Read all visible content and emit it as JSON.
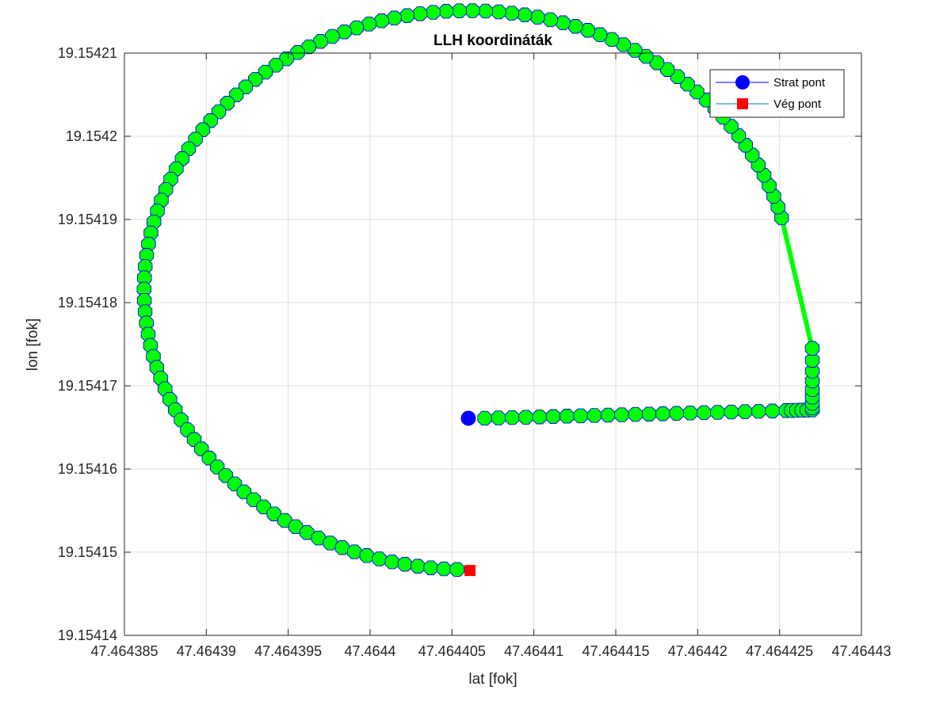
{
  "chart_data": {
    "type": "scatter",
    "title": "LLH koordináták",
    "xlabel": "lat [fok]",
    "ylabel": "lon [fok]",
    "xlim": [
      47.464385,
      47.46443
    ],
    "ylim": [
      19.15414,
      19.15421
    ],
    "xticks": [
      "47.464385",
      "47.46439",
      "47.464395",
      "47.4644",
      "47.464405",
      "47.46441",
      "47.464415",
      "47.46442",
      "47.464425",
      "47.46443"
    ],
    "yticks": [
      "19.15414",
      "19.15415",
      "19.15416",
      "19.15417",
      "19.15418",
      "19.15419",
      "19.1542",
      "19.15421"
    ],
    "grid": true,
    "legend_position": "top-right",
    "legend": [
      {
        "name": "Strat pont",
        "marker": "circle",
        "color": "#0000ff"
      },
      {
        "name": "Vég pont",
        "marker": "square",
        "color": "#ff0000"
      }
    ],
    "colors": {
      "path_marker_fill": "#00ff00",
      "path_marker_edge": "#0000ff",
      "path_line": "#00ff00",
      "start": "#0000ff",
      "end": "#ff0000",
      "grid": "#dfdfdf",
      "axes": "#262626"
    },
    "path_segments": [
      {
        "lat": [
          47.464406,
          47.464427
        ],
        "lon": [
          19.1541661,
          19.1541671
        ]
      },
      {
        "lat": [
          47.464427,
          47.464427
        ],
        "lon": [
          19.1541671,
          19.1541774
        ]
      }
    ],
    "arc": {
      "center_lat": 47.464406,
      "center_lon": 19.1541815,
      "radius_lat": 1.98e-05,
      "radius_lon": 3.36e-05,
      "theta_start_deg": 15,
      "theta_end_deg": 268,
      "count": 110
    },
    "straight_run": {
      "lat_start": 47.464407,
      "lat_end": 47.464427,
      "lon_start": 19.1541661,
      "lon_end": 19.1541671,
      "count": 28,
      "bunch_count": 6
    },
    "vertical_run": {
      "lat": 47.464427,
      "lon_start": 19.1541671,
      "lon_end": 19.1541745,
      "count": 8
    },
    "start_point": {
      "lat": 47.464406,
      "lon": 19.1541661,
      "label": "Strat pont"
    },
    "end_point": {
      "lat": 47.4644061,
      "lon": 19.1541478,
      "label": "Vég pont"
    }
  }
}
